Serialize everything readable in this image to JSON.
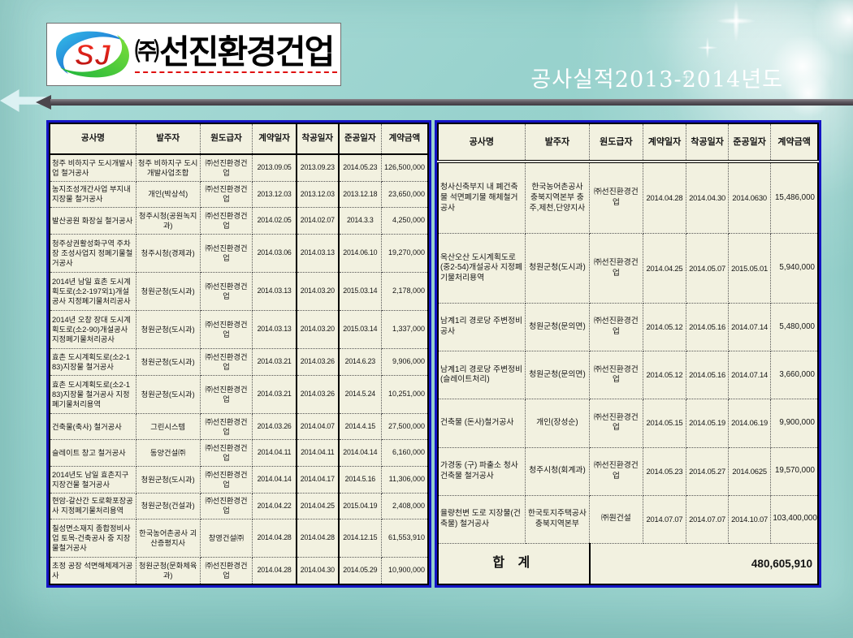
{
  "slide": {
    "title": "공사실적2013-2014년도",
    "logo": {
      "prefix": "㈜",
      "name": "선진환경건업",
      "mark_text": "SJ"
    }
  },
  "colors": {
    "background_teal": "#98d2cd",
    "table_background": "#f2f1e0",
    "table_outer_border": "#1414c6",
    "logo_underline_red": "#e01010",
    "title_text": "#ffffff",
    "arrow_dark": "#4c474d"
  },
  "tables": {
    "left": {
      "columns": [
        "공사명",
        "발주자",
        "원도급자",
        "계약일자",
        "착공일자",
        "준공일자",
        "계약금액"
      ],
      "rows": [
        [
          "청주 비하지구 도시개발사업 철거공사",
          "청주 비하지구 도시개발사업조합",
          "㈜선진환경건업",
          "2013.09.05",
          "2013.09.23",
          "2014.05.23",
          "126,500,000"
        ],
        [
          "농지조성개간사업 부지내 지장물 철거공사",
          "개인(박상석)",
          "㈜선진환경건업",
          "2013.12.03",
          "2013.12.03",
          "2013.12.18",
          "23,650,000"
        ],
        [
          "발산공원 화장실 철거공사",
          "청주시청(공원녹지과)",
          "㈜선진환경건업",
          "2014.02.05",
          "2014.02.07",
          "2014.3.3",
          "4,250,000"
        ],
        [
          "청주상권활성화구역 주차장 조성사업지 정폐기물철거공사",
          "청주시청(경제과)",
          "㈜선진환경건업",
          "2014.03.06",
          "2014.03.13",
          "2014.06.10",
          "19,270,000"
        ],
        [
          "2014년 남일 효촌 도시계획도로(소2-197외1)개설공사 지정폐기물처리공사",
          "청원군청(도시과)",
          "㈜선진환경건업",
          "2014.03.13",
          "2014.03.20",
          "2015.03.14",
          "2,178,000"
        ],
        [
          "2014년 오창 장대 도시계획도로(소2-90)개설공사 지정폐기물처리공사",
          "청원군청(도시과)",
          "㈜선진환경건업",
          "2014.03.13",
          "2014.03.20",
          "2015.03.14",
          "1,337,000"
        ],
        [
          "효촌 도시계획도로(소2-183)지장물 철거공사",
          "청원군청(도시과)",
          "㈜선진환경건업",
          "2014.03.21",
          "2014.03.26",
          "2014.6.23",
          "9,906,000"
        ],
        [
          "효촌 도시계획도로(소2-183)지장물 철거공사 지정폐기물처리용역",
          "청원군청(도시과)",
          "㈜선진환경건업",
          "2014.03.21",
          "2014.03.26",
          "2014.5.24",
          "10,251,000"
        ],
        [
          "건축물(축사) 철거공사",
          "그린시스템",
          "㈜선진환경건업",
          "2014.03.26",
          "2014.04.07",
          "2014.4.15",
          "27,500,000"
        ],
        [
          "슬레이트 창고 철거공사",
          "동양건설㈜",
          "㈜선진환경건업",
          "2014.04.11",
          "2014.04.11",
          "2014.04.14",
          "6,160,000"
        ],
        [
          "2014년도 남일 효촌지구 지장건물 철거공사",
          "청원군청(도시과)",
          "㈜선진환경건업",
          "2014.04.14",
          "2014.04.17",
          "2014.5.16",
          "11,306,000"
        ],
        [
          "현암-갈산간 도로확포장공사 지정폐기물처리용역",
          "청원군청(건설과)",
          "㈜선진환경건업",
          "2014.04.22",
          "2014.04.25",
          "2015.04.19",
          "2,408,000"
        ],
        [
          "칠성면소재지 종합정비사업 토목-건축공사 중 지장물철거공사",
          "한국농어촌공사 괴산증평지사",
          "창영건설㈜",
          "2014.04.28",
          "2014.04.28",
          "2014.12.15",
          "61,553,910"
        ],
        [
          "초정 공장 석면해체제거공사",
          "청원군청(문화체육과)",
          "㈜선진환경건업",
          "2014.04.28",
          "2014.04.30",
          "2014.05.29",
          "10,900,000"
        ]
      ]
    },
    "right": {
      "columns": [
        "공사명",
        "발주자",
        "원도급자",
        "계약일자",
        "착공일자",
        "준공일자",
        "계약금액"
      ],
      "rows": [
        [
          "청사신축부지 내 폐건축물 석면폐기물 해체철거공사",
          "한국농어촌공사 충북지역본부 충주,제천,단양지사",
          "㈜선진환경건업",
          "2014.04.28",
          "2014.04.30",
          "2014.0630",
          "15,486,000"
        ],
        [
          "옥산오산 도시계획도로(중2-54)개설공사 지정폐기물처리용역",
          "청원군청(도시과)",
          "㈜선진환경건업",
          "2014.04.25",
          "2014.05.07",
          "2015.05.01",
          "5,940,000"
        ],
        [
          "남계1리 경로당 주변정비공사",
          "청원군청(문의면)",
          "㈜선진환경건업",
          "2014.05.12",
          "2014.05.16",
          "2014.07.14",
          "5,480,000"
        ],
        [
          "남계1리 경로당 주변정비(슬레이트처리)",
          "청원군청(문의면)",
          "㈜선진환경건업",
          "2014.05.12",
          "2014.05.16",
          "2014.07.14",
          "3,660,000"
        ],
        [
          "건축물 (돈사)철거공사",
          "개인(장성순)",
          "㈜선진환경건업",
          "2014.05.15",
          "2014.05.19",
          "2014.06.19",
          "9,900,000"
        ],
        [
          "가경동 (구) 파출소 청사 건축물 철거공사",
          "청주시청(회계과)",
          "㈜선진환경건업",
          "2014.05.23",
          "2014.05.27",
          "2014.0625",
          "19,570,000"
        ],
        [
          "율량천변 도로 지장물(건축물) 철거공사",
          "한국토지주택공사 충북지역본부",
          "㈜원건설",
          "2014.07.07",
          "2014.07.07",
          "2014.10.07",
          "103,400,000"
        ]
      ],
      "total": {
        "label": "합 계",
        "amount": "480,605,910"
      }
    }
  }
}
